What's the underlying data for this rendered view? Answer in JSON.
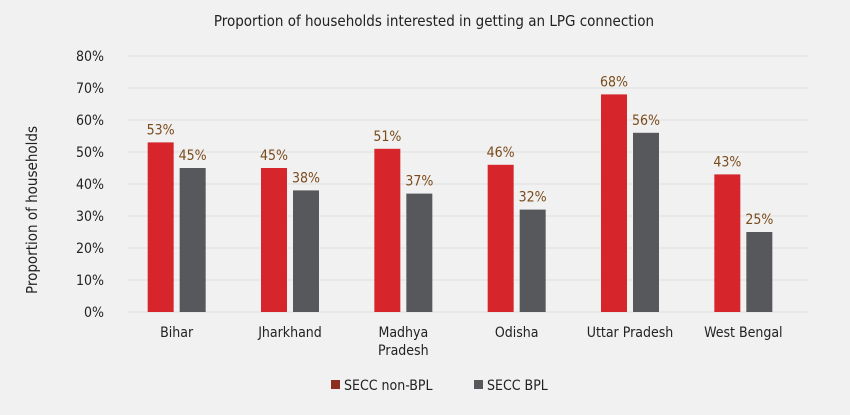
{
  "chart_data": {
    "type": "bar",
    "title": "Proportion of households interested in getting an LPG connection",
    "xlabel": "",
    "ylabel": "Proportion of households",
    "categories": [
      [
        "Bihar"
      ],
      [
        "Jharkhand"
      ],
      [
        "Madhya",
        "Pradesh"
      ],
      [
        "Odisha"
      ],
      [
        "Uttar Pradesh"
      ],
      [
        "West Bengal"
      ]
    ],
    "series": [
      {
        "name": "SECC non-BPL",
        "values": [
          53,
          45,
          51,
          46,
          68,
          43
        ],
        "color": "#d7262b"
      },
      {
        "name": "SECC BPL",
        "values": [
          45,
          38,
          37,
          32,
          56,
          25
        ],
        "color": "#57585c"
      }
    ],
    "data_labels": [
      [
        "53%",
        "45%",
        "51%",
        "46%",
        "68%",
        "43%"
      ],
      [
        "45%",
        "38%",
        "37%",
        "32%",
        "56%",
        "25%"
      ]
    ],
    "yticks": [
      "0%",
      "10%",
      "20%",
      "30%",
      "40%",
      "50%",
      "60%",
      "70%",
      "80%"
    ],
    "ylim": [
      0,
      80
    ],
    "grid": true,
    "legend_position": "bottom-center"
  }
}
